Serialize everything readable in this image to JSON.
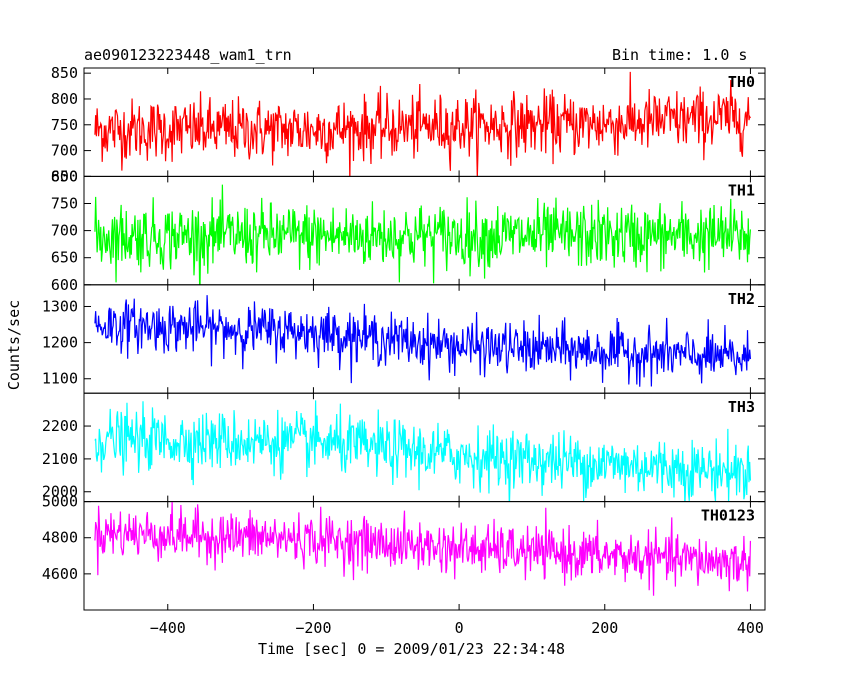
{
  "header": {
    "title": "ae090123223448_wam1_trn",
    "bin_time": "Bin time: 1.0 s"
  },
  "axes": {
    "xlabel": "Time [sec] 0 = 2009/01/23 22:34:48",
    "ylabel": "Counts/sec"
  },
  "chart_data": {
    "type": "line",
    "title": "ae090123223448_wam1_trn",
    "subtitle": "Bin time: 1.0 s",
    "xlabel": "Time [sec] 0 = 2009/01/23 22:34:48",
    "ylabel": "Counts/sec",
    "xlim": [
      -500,
      400
    ],
    "x_range_data": [
      -500,
      400
    ],
    "x_ticks": [
      -400,
      -200,
      0,
      200,
      400
    ],
    "x_tick_labels": [
      "−400",
      "−200",
      "0",
      "200",
      "400"
    ],
    "grid": false,
    "legend": "none",
    "panels": [
      {
        "name": "TH0",
        "color": "#ff0000",
        "ylim": [
          650,
          860
        ],
        "yticks": [
          650,
          700,
          750,
          800,
          850
        ],
        "trend": [
          [
            -500,
            740
          ],
          [
            -200,
            740
          ],
          [
            0,
            748
          ],
          [
            200,
            752
          ],
          [
            400,
            765
          ]
        ],
        "noise_sd": 30
      },
      {
        "name": "TH1",
        "color": "#00ff00",
        "ylim": [
          600,
          800
        ],
        "yticks": [
          600,
          650,
          700,
          750,
          800
        ],
        "trend": [
          [
            -500,
            690
          ],
          [
            0,
            690
          ],
          [
            400,
            690
          ]
        ],
        "noise_sd": 30
      },
      {
        "name": "TH2",
        "color": "#0000ff",
        "ylim": [
          1060,
          1360
        ],
        "yticks": [
          1100,
          1200,
          1300
        ],
        "trend": [
          [
            -500,
            1250
          ],
          [
            -200,
            1230
          ],
          [
            0,
            1190
          ],
          [
            200,
            1175
          ],
          [
            400,
            1155
          ]
        ],
        "noise_sd": 35
      },
      {
        "name": "TH3",
        "color": "#00ffff",
        "ylim": [
          1970,
          2300
        ],
        "yticks": [
          2000,
          2100,
          2200
        ],
        "trend": [
          [
            -500,
            2160
          ],
          [
            -200,
            2150
          ],
          [
            0,
            2110
          ],
          [
            200,
            2085
          ],
          [
            400,
            2060
          ]
        ],
        "noise_sd": 45
      },
      {
        "name": "TH0123",
        "color": "#ff00ff",
        "ylim": [
          4400,
          5000
        ],
        "yticks": [
          4600,
          4800,
          5000
        ],
        "trend": [
          [
            -500,
            4830
          ],
          [
            -200,
            4790
          ],
          [
            0,
            4740
          ],
          [
            200,
            4700
          ],
          [
            400,
            4660
          ]
        ],
        "noise_sd": 70
      }
    ]
  }
}
